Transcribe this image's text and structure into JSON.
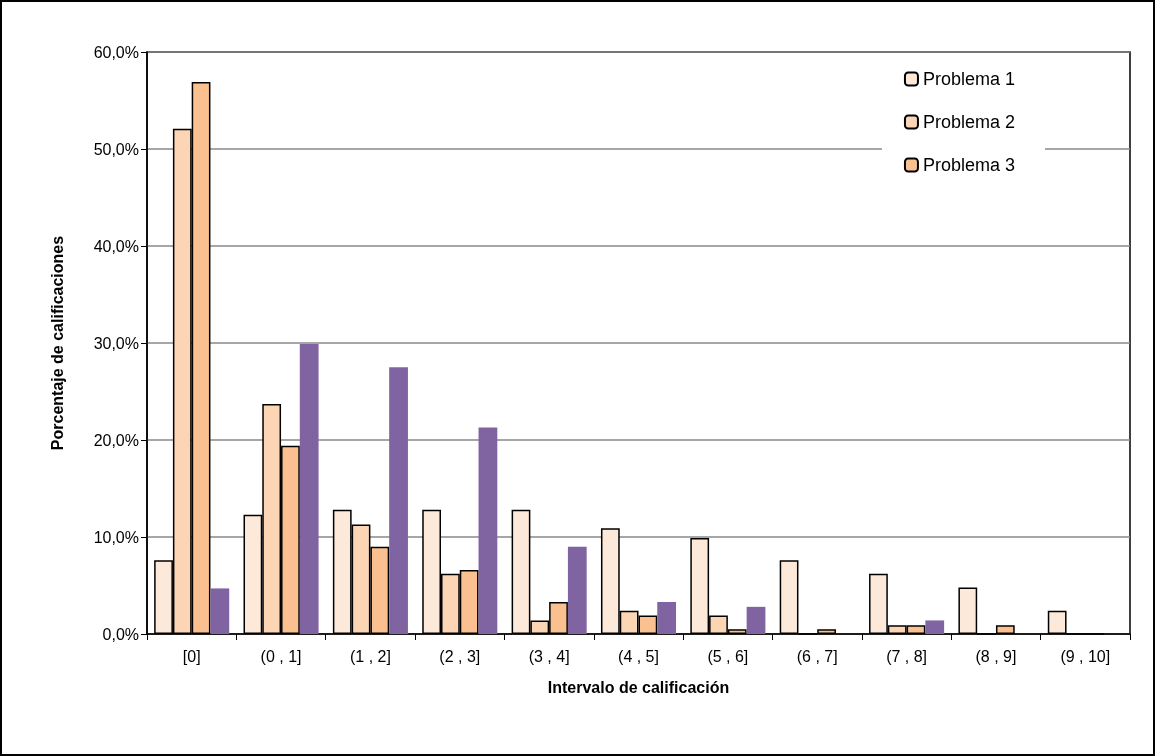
{
  "chart_data": {
    "type": "bar",
    "xlabel": "Intervalo de calificación",
    "ylabel": "Porcentaje de calificaciones",
    "categories": [
      "[0]",
      "(0 , 1]",
      "(1 , 2]",
      "(2 , 3]",
      "(3 , 4]",
      "(4 , 5]",
      "(5 , 6]",
      "(6 , 7]",
      "(7 , 8]",
      "(8 , 9]",
      "(9 , 10]"
    ],
    "series": [
      {
        "name": "Problema 1",
        "color": "#fde9d9",
        "values": [
          7.6,
          12.3,
          12.8,
          12.8,
          12.8,
          10.9,
          9.9,
          7.6,
          6.2,
          4.8,
          2.4
        ]
      },
      {
        "name": "Problema 2",
        "color": "#fcd5b5",
        "values": [
          52.1,
          23.7,
          11.3,
          6.2,
          1.4,
          2.4,
          1.9,
          0,
          0.9,
          0,
          0
        ]
      },
      {
        "name": "Problema 3",
        "color": "#fac090",
        "values": [
          56.9,
          19.4,
          9.0,
          6.6,
          3.3,
          1.9,
          0.5,
          0.5,
          0.9,
          0.9,
          0
        ]
      },
      {
        "color": "#8064a2",
        "values": [
          4.7,
          29.9,
          27.5,
          21.3,
          9.0,
          3.3,
          2.8,
          0,
          1.4,
          0,
          0
        ]
      }
    ],
    "ylim": [
      0,
      60
    ],
    "yticks": [
      {
        "value": 0,
        "label": "0,0%"
      },
      {
        "value": 10,
        "label": "10,0%"
      },
      {
        "value": 20,
        "label": "20,0%"
      },
      {
        "value": 30,
        "label": "30,0%"
      },
      {
        "value": 40,
        "label": "40,0%"
      },
      {
        "value": 50,
        "label": "50,0%"
      },
      {
        "value": 60,
        "label": "60,0%"
      }
    ],
    "grid": "y",
    "legend": "top right"
  }
}
